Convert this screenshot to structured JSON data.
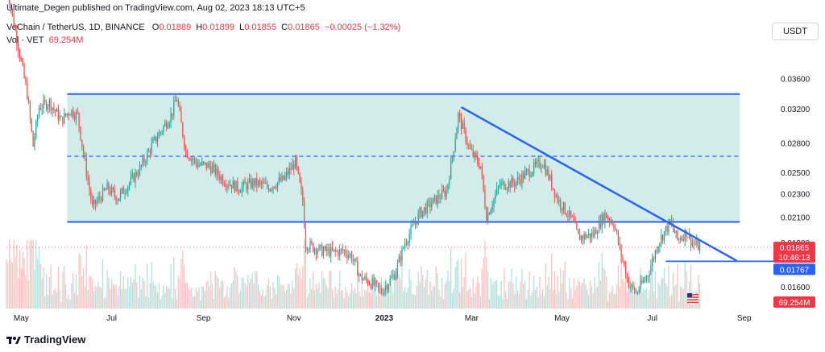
{
  "header": {
    "publish_line": "Ultimate_Degen published on TradingView.com, Aug 02, 2023 18:13 UTC+5",
    "symbol": "VeChain / TetherUS, 1D, BINANCE",
    "o_label": "O",
    "o_value": "0.01889",
    "h_label": "H",
    "h_value": "0.01899",
    "l_label": "L",
    "l_value": "0.01855",
    "c_label": "C",
    "c_value": "0.01865",
    "change": "−0.00025 (−1.32%)",
    "vol_label": "Vol · VET",
    "vol_value": "69.254M",
    "currency": "USDT"
  },
  "footer": {
    "brand": "TradingView"
  },
  "colors": {
    "up": "#26a69a",
    "down": "#ef5350",
    "trendline": "#2962ff",
    "range_fill": "#b2dfdb",
    "price_tag": "#f23645",
    "level_tag": "#2962ff"
  },
  "chart_data": {
    "type": "candlestick",
    "symbol": "VET/USDT",
    "timeframe": "1D",
    "y_scale": "log",
    "ylim": [
      0.0147,
      0.0405
    ],
    "y_ticks": [
      "0.03600",
      "0.03200",
      "0.02800",
      "0.02500",
      "0.02300",
      "0.02100",
      "0.01900",
      "0.01600"
    ],
    "y_tick_values": [
      0.036,
      0.032,
      0.028,
      0.025,
      0.023,
      0.021,
      0.019,
      0.016
    ],
    "x_labels": [
      "May",
      "Jul",
      "Sep",
      "Nov",
      "2023",
      "Mar",
      "May",
      "Jul",
      "Sep"
    ],
    "x_label_dates": [
      "2022-05-01",
      "2022-07-01",
      "2022-09-01",
      "2022-11-01",
      "2023-01-01",
      "2023-03-01",
      "2023-05-01",
      "2023-07-01",
      "2023-09-01"
    ],
    "x_range": [
      "2022-04-21",
      "2023-09-18"
    ],
    "price_path": [
      [
        "2022-04-21",
        0.052
      ],
      [
        "2022-05-05",
        0.0339
      ],
      [
        "2022-05-09",
        0.0277
      ],
      [
        "2022-05-13",
        0.0322
      ],
      [
        "2022-05-20",
        0.0328
      ],
      [
        "2022-05-28",
        0.0306
      ],
      [
        "2022-06-03",
        0.0318
      ],
      [
        "2022-06-08",
        0.0312
      ],
      [
        "2022-06-12",
        0.0268
      ],
      [
        "2022-06-18",
        0.0218
      ],
      [
        "2022-06-28",
        0.0235
      ],
      [
        "2022-07-05",
        0.0226
      ],
      [
        "2022-07-12",
        0.0238
      ],
      [
        "2022-07-20",
        0.0253
      ],
      [
        "2022-07-28",
        0.0277
      ],
      [
        "2022-08-10",
        0.0312
      ],
      [
        "2022-08-14",
        0.0334
      ],
      [
        "2022-08-20",
        0.0271
      ],
      [
        "2022-08-28",
        0.0258
      ],
      [
        "2022-09-05",
        0.0256
      ],
      [
        "2022-09-15",
        0.0242
      ],
      [
        "2022-09-25",
        0.0235
      ],
      [
        "2022-10-05",
        0.024
      ],
      [
        "2022-10-15",
        0.0236
      ],
      [
        "2022-10-25",
        0.0243
      ],
      [
        "2022-11-02",
        0.026
      ],
      [
        "2022-11-07",
        0.0223
      ],
      [
        "2022-11-09",
        0.0189
      ],
      [
        "2022-11-20",
        0.0184
      ],
      [
        "2022-11-28",
        0.0183
      ],
      [
        "2022-12-05",
        0.0184
      ],
      [
        "2022-12-10",
        0.018
      ],
      [
        "2022-12-16",
        0.0166
      ],
      [
        "2022-12-24",
        0.0162
      ],
      [
        "2022-12-30",
        0.0157
      ],
      [
        "2023-01-08",
        0.0168
      ],
      [
        "2023-01-15",
        0.019
      ],
      [
        "2023-01-25",
        0.0213
      ],
      [
        "2023-02-05",
        0.0225
      ],
      [
        "2023-02-12",
        0.0232
      ],
      [
        "2023-02-17",
        0.0276
      ],
      [
        "2023-02-20",
        0.0312
      ],
      [
        "2023-02-28",
        0.0272
      ],
      [
        "2023-03-07",
        0.0256
      ],
      [
        "2023-03-11",
        0.021
      ],
      [
        "2023-03-20",
        0.0238
      ],
      [
        "2023-03-30",
        0.024
      ],
      [
        "2023-04-10",
        0.0252
      ],
      [
        "2023-04-18",
        0.026
      ],
      [
        "2023-04-22",
        0.0246
      ],
      [
        "2023-04-28",
        0.0225
      ],
      [
        "2023-05-08",
        0.0207
      ],
      [
        "2023-05-12",
        0.0194
      ],
      [
        "2023-05-22",
        0.0196
      ],
      [
        "2023-05-30",
        0.0212
      ],
      [
        "2023-06-05",
        0.0205
      ],
      [
        "2023-06-10",
        0.0181
      ],
      [
        "2023-06-15",
        0.0162
      ],
      [
        "2023-06-20",
        0.0156
      ],
      [
        "2023-06-28",
        0.0168
      ],
      [
        "2023-07-05",
        0.019
      ],
      [
        "2023-07-13",
        0.0206
      ],
      [
        "2023-07-18",
        0.0192
      ],
      [
        "2023-07-24",
        0.0198
      ],
      [
        "2023-07-28",
        0.019
      ],
      [
        "2023-08-02",
        0.01865
      ]
    ],
    "annotations": {
      "range_top": 0.0339,
      "range_bottom": 0.0206,
      "range_mid_dashed": 0.0266,
      "range_start": "2022-06-01",
      "range_end": "2023-08-29",
      "trendline": [
        [
          "2023-02-22",
          0.0322
        ],
        [
          "2023-08-27",
          0.0177
        ]
      ],
      "support_line": [
        [
          "2023-07-10",
          0.01767
        ],
        [
          "2023-09-18",
          0.01767
        ]
      ],
      "reference_dotted": 0.01865
    },
    "price_labels": {
      "last_price": "0.01865",
      "countdown": "10:46:13",
      "support_level": "0.01767",
      "volume": "69.254M"
    }
  }
}
